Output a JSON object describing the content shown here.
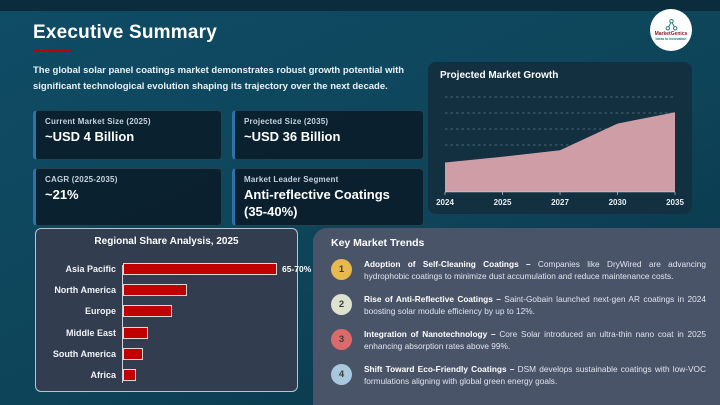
{
  "slide": {
    "title": "Executive Summary",
    "subtitle": "The global solar panel coatings market demonstrates robust growth potential with significant technological evolution shaping its trajectory over the next decade.",
    "accent_color": "#c00000"
  },
  "logo": {
    "name": "MarketGenics",
    "tagline": "Ideas to Innovation",
    "icon": "molecule-icon"
  },
  "stats": [
    {
      "label": "Current Market Size (2025)",
      "value": "~USD 4 Billion"
    },
    {
      "label": "Projected Size (2035)",
      "value": "~USD 36 Billion"
    },
    {
      "label": "CAGR (2025-2035)",
      "value": "~21%"
    },
    {
      "label": "Market Leader Segment",
      "value": "Anti-reflective Coatings (35-40%)"
    }
  ],
  "chart_data": [
    {
      "type": "area",
      "title": "Projected Market Growth",
      "x": [
        "2024",
        "2025",
        "2027",
        "2030",
        "2035"
      ],
      "values": [
        31,
        37,
        44,
        72,
        84
      ],
      "ylim": [
        0,
        100
      ],
      "xlabel": "",
      "ylabel": "",
      "grid": "horizontal-dashed",
      "legend": "none",
      "fill_color": "#cf9da6",
      "note": "stylized area chart, y-axis unlabeled; values are relative heights in % of plot"
    },
    {
      "type": "bar",
      "title": "Regional Share Analysis, 2025",
      "orientation": "horizontal",
      "categories": [
        "Asia Pacific",
        "North America",
        "Europe",
        "Middle East",
        "South America",
        "Africa"
      ],
      "values": [
        67.5,
        27.5,
        21,
        10,
        8,
        5
      ],
      "data_labels": [
        "65-70%",
        "",
        "",
        "",
        "",
        ""
      ],
      "xlim": [
        0,
        70
      ],
      "xlabel": "",
      "ylabel": "",
      "bar_color": "#c00000",
      "legend": "none"
    }
  ],
  "trends": {
    "title": "Key Market Trends",
    "items": [
      {
        "num": "1",
        "color": "#e8b94e",
        "title": "Adoption of Self-Cleaning Coatings –",
        "text": "Companies like DryWired are advancing hydrophobic coatings to minimize dust accumulation and reduce maintenance costs."
      },
      {
        "num": "2",
        "color": "#dde2cf",
        "title": "Rise of Anti-Reflective Coatings –",
        "text": "Saint-Gobain launched next-gen AR coatings in 2024 boosting solar module efficiency by up to 12%."
      },
      {
        "num": "3",
        "color": "#dd6a6a",
        "title": "Integration of Nanotechnology –",
        "text": "Core Solar introduced an ultra-thin nano coat in 2025 enhancing absorption rates above 99%."
      },
      {
        "num": "4",
        "color": "#a9c7dd",
        "title": "Shift Toward Eco-Friendly Coatings –",
        "text": "DSM develops sustainable coatings with low-VOC formulations aligning with global green energy goals."
      }
    ]
  }
}
